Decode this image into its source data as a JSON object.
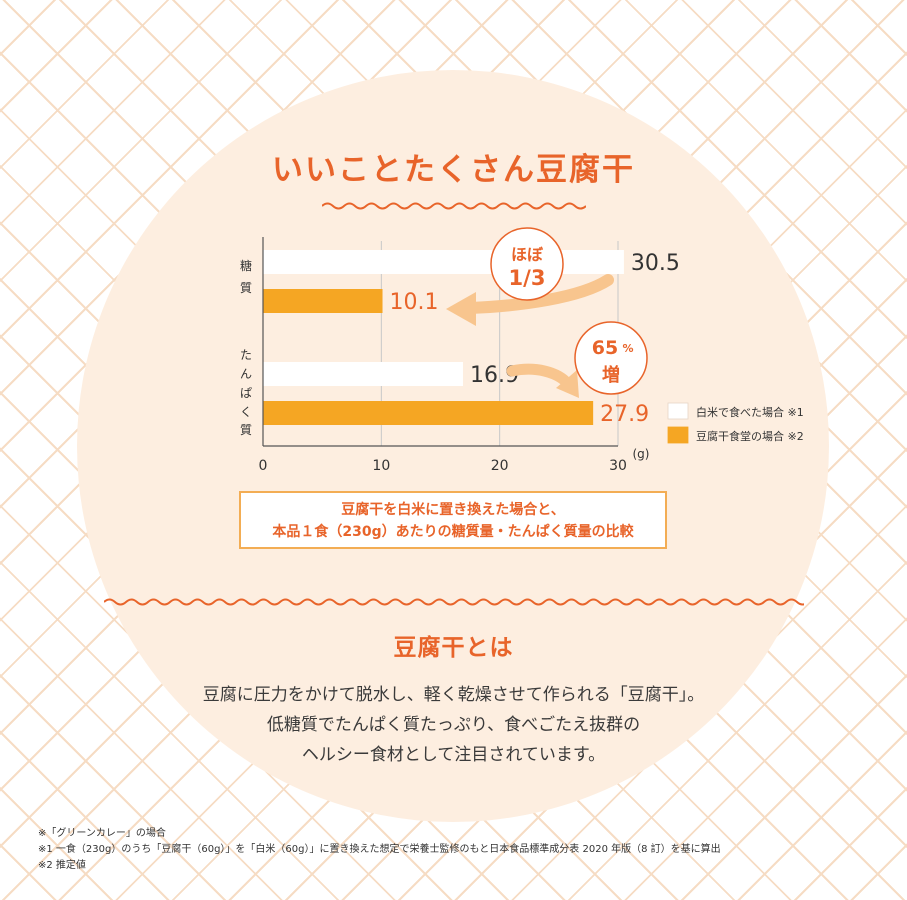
{
  "header": {
    "title": "いいことたくさん豆腐干"
  },
  "callouts": {
    "sugar": [
      "ほぼ",
      "1/3"
    ],
    "protein": [
      "65",
      "%",
      "増"
    ]
  },
  "legend": {
    "items": [
      {
        "label": "白米で食べた場合 ※1",
        "color": "#ffffff"
      },
      {
        "label": "豆腐干食堂の場合 ※2",
        "color": "#f5a623"
      }
    ]
  },
  "note": {
    "line1": "豆腐干を白米に置き換えた場合と、",
    "line2": "本品１食（230g）あたりの糖質量・たんぱく質量の比較"
  },
  "about": {
    "title": "豆腐干とは",
    "lines": [
      "豆腐に圧力をかけて脱水し、軽く乾燥させて作られる「豆腐干」。",
      "低糖質でたんぱく質たっぷり、食べごたえ抜群の",
      "ヘルシー食材として注目されています。"
    ]
  },
  "footnotes": [
    "※「グリーンカレー」の場合",
    "※1 一食（230g）のうち「豆腐干（60g）」を「白米（60g）」に置き換えた想定で栄養士監修のもと日本食品標準成分表 2020 年版（8 訂）を基に算出",
    "※2 推定値"
  ],
  "colors": {
    "accent": "#e8642a",
    "bar_orange": "#f5a623",
    "bar_white": "#ffffff",
    "circle": "#fdeee0"
  },
  "chart_data": {
    "type": "bar",
    "orientation": "horizontal",
    "categories": [
      "糖質",
      "たんぱく質"
    ],
    "series": [
      {
        "name": "白米で食べた場合 ※1",
        "values": [
          30.5,
          16.9
        ],
        "color": "#ffffff"
      },
      {
        "name": "豆腐干食堂の場合 ※2",
        "values": [
          10.1,
          27.9
        ],
        "color": "#f5a623"
      }
    ],
    "xlim": [
      0,
      30
    ],
    "xticks": [
      0,
      10,
      20,
      30
    ],
    "xunit": "(g)",
    "grid": true,
    "legend_position": "right"
  }
}
